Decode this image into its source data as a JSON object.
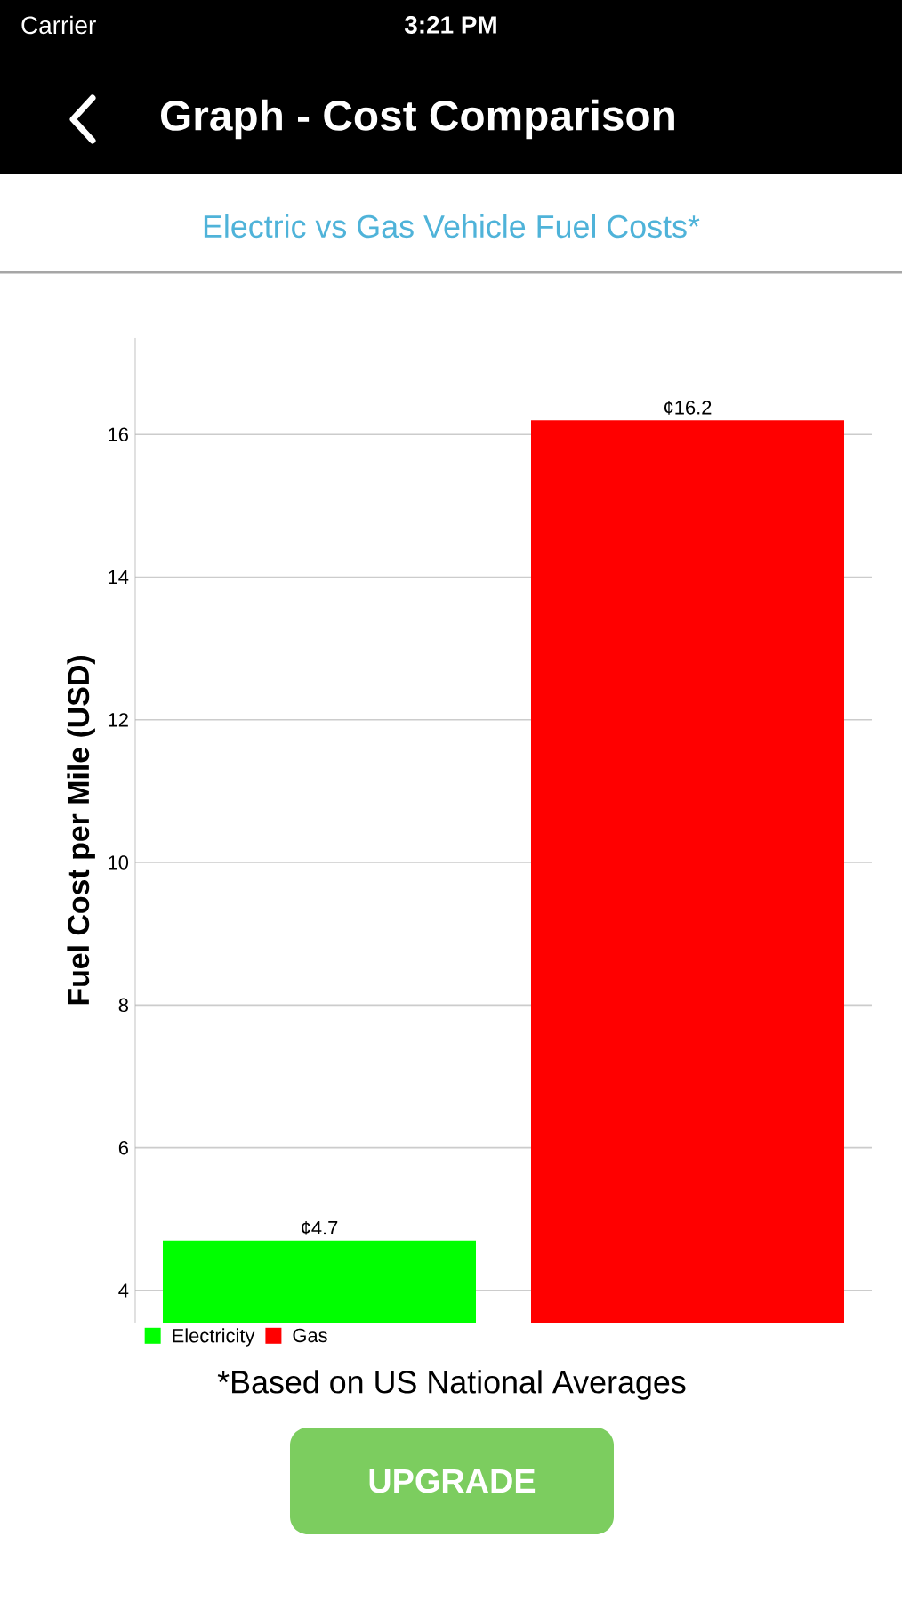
{
  "chart_data": {
    "type": "bar",
    "title": "Graph - Cost Comparison",
    "subtitle": "Electric vs Gas Vehicle Fuel Costs*",
    "ylabel": "Fuel Cost per Mile (USD)",
    "categories": [
      null,
      null
    ],
    "series": [
      {
        "name": "Electricity",
        "color": "#00ff00",
        "values": [
          4.7,
          null
        ],
        "value_labels": [
          "¢4.7",
          null
        ]
      },
      {
        "name": "Gas",
        "color": "#ff0000",
        "values": [
          null,
          16.2
        ],
        "value_labels": [
          null,
          "¢16.2"
        ]
      }
    ],
    "ylim": [
      3.55,
      17.35
    ],
    "yticks": [
      4,
      6,
      8,
      10,
      12,
      14,
      16
    ],
    "grid": "y",
    "legend": "bottom left",
    "annotations": [
      "Carrier",
      "3:21 PM",
      "*Based on US National Averages",
      "UPGRADE"
    ]
  }
}
